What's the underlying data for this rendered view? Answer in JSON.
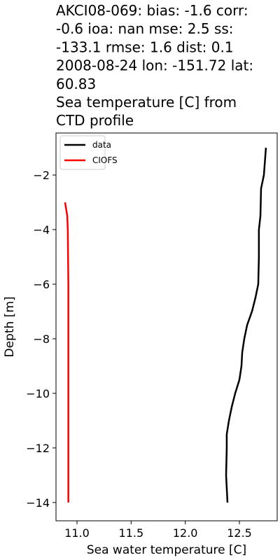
{
  "chart_data": {
    "type": "line",
    "title_lines": [
      "AKCI08-069: bias: -1.6  corr:",
      "-0.6  ioa: nan  mse: 2.5  ss:",
      "-133.1  rmse: 1.6  dist: 0.1",
      "2008-08-24 lon: -151.72 lat:",
      "60.83",
      "Sea temperature [C] from",
      "CTD profile"
    ],
    "x_label": "Sea water temperature [C]",
    "y_label": "Depth [m]",
    "xlim": [
      10.806,
      12.849
    ],
    "ylim": [
      -14.67,
      -0.46
    ],
    "xticks": [
      {
        "value": 11,
        "label": "11.0"
      },
      11.5,
      {
        "value": 12,
        "label": "12.0"
      },
      12.5
    ],
    "yticks": [
      {
        "value": -2,
        "label": "−2"
      },
      {
        "value": -4,
        "label": "−4"
      },
      {
        "value": -6,
        "label": "−6"
      },
      {
        "value": -8,
        "label": "−8"
      },
      {
        "value": -10,
        "label": "−10"
      },
      {
        "value": -12,
        "label": "−12"
      },
      {
        "value": -14,
        "label": "−14"
      }
    ],
    "legend": "upper left",
    "series": [
      {
        "name": "data",
        "color": "#000000",
        "x": [
          12.745,
          12.726,
          12.7,
          12.694,
          12.68,
          12.68,
          12.674,
          12.648,
          12.616,
          12.571,
          12.545,
          12.526,
          12.519,
          12.5,
          12.461,
          12.429,
          12.403,
          12.383,
          12.383,
          12.377,
          12.39
        ],
        "values": [
          -1,
          -2,
          -2.5,
          -3.5,
          -4,
          -5,
          -6,
          -6.5,
          -7,
          -7.5,
          -8,
          -8.5,
          -9,
          -9.5,
          -10,
          -10.5,
          -11,
          -11.5,
          -12,
          -13,
          -14
        ]
      },
      {
        "name": "CIOFS",
        "color": "#ff0000",
        "x": [
          10.89,
          10.91,
          10.915,
          10.92,
          10.92,
          10.92
        ],
        "values": [
          -3,
          -3.5,
          -4,
          -6,
          -10,
          -14
        ]
      }
    ]
  }
}
